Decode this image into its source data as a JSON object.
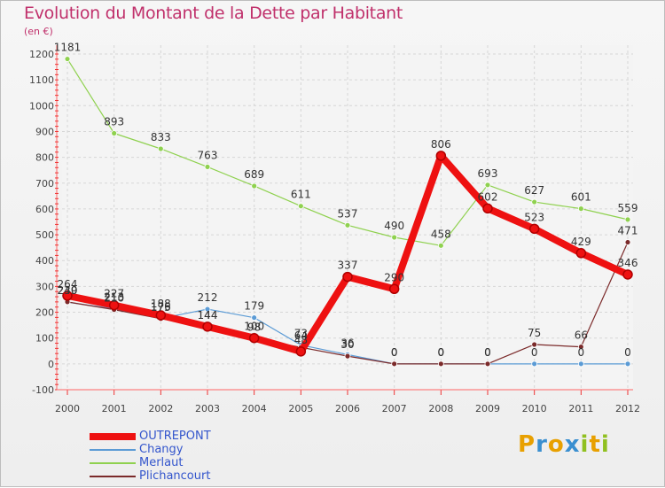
{
  "title": "Evolution du Montant de la Dette par Habitant",
  "unit_label": "(en €)",
  "logo": {
    "letters": [
      "P",
      "r",
      "o",
      "x",
      "i",
      "t",
      "i"
    ],
    "colors": [
      "#e8a000",
      "#3a8fd0",
      "#e8a000",
      "#3a8fd0",
      "#90c020",
      "#e8a000",
      "#90c020"
    ]
  },
  "chart_data": {
    "type": "line",
    "x": [
      "2000",
      "2001",
      "2002",
      "2003",
      "2004",
      "2005",
      "2006",
      "2007",
      "2008",
      "2009",
      "2010",
      "2011",
      "2012"
    ],
    "ylim": [
      -100,
      1200
    ],
    "yticks": [
      -100,
      0,
      100,
      200,
      300,
      400,
      500,
      600,
      700,
      800,
      900,
      1000,
      1100,
      1200
    ],
    "grid": true,
    "legend_position": "bottom-left",
    "series": [
      {
        "name": "OUTREPONT",
        "color": "#ee1111",
        "values": [
          264,
          227,
          188,
          144,
          100,
          48,
          337,
          290,
          806,
          602,
          523,
          429,
          346
        ]
      },
      {
        "name": "Changy",
        "color": "#5b9bd5",
        "values": [
          239,
          213,
          176,
          212,
          179,
          73,
          36,
          0,
          0,
          0,
          0,
          0,
          0
        ]
      },
      {
        "name": "Merlaut",
        "color": "#8fd14f",
        "values": [
          1181,
          893,
          833,
          763,
          689,
          611,
          537,
          490,
          458,
          693,
          627,
          601,
          559
        ]
      },
      {
        "name": "Plichancourt",
        "color": "#7b2a2a",
        "values": [
          240,
          210,
          175,
          144,
          98,
          64,
          30,
          0,
          0,
          0,
          75,
          66,
          471
        ]
      }
    ],
    "data_labels": [
      [
        "264",
        "227",
        "188",
        "144",
        "100",
        "48",
        "337",
        "290",
        "806",
        "602",
        "523",
        "429",
        "346"
      ],
      [
        "239",
        "213",
        "176",
        "212",
        "179",
        "73",
        "36",
        "0",
        "0",
        "0",
        "0",
        "0",
        "0"
      ],
      [
        "1181",
        "893",
        "833",
        "763",
        "689",
        "611",
        "537",
        "490",
        "458",
        "693",
        "627",
        "601",
        "559"
      ],
      [
        "240",
        "210",
        "175",
        "144",
        "98",
        "64",
        "30",
        "0",
        "0",
        "0",
        "75",
        "66",
        "471"
      ]
    ]
  }
}
